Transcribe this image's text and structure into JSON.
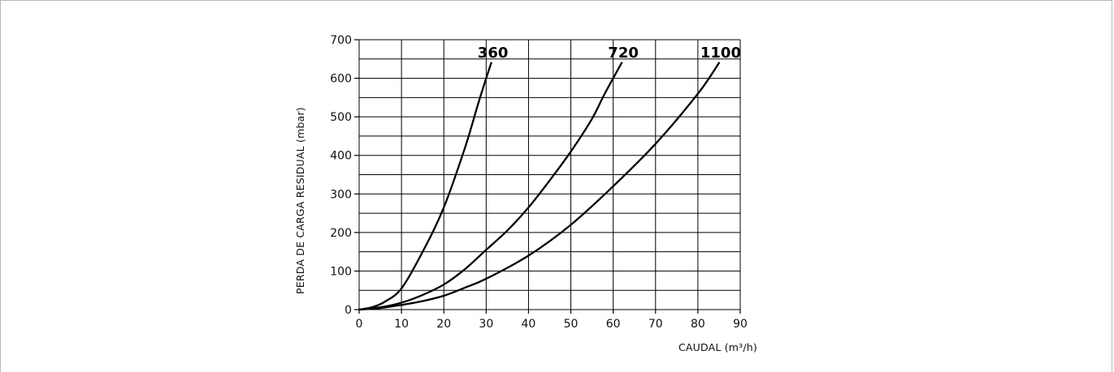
{
  "chart_data": {
    "type": "line",
    "title": "",
    "xlabel": "CAUDAL (m³/h)",
    "ylabel": "PERDA DE CARGA RESIDUAL (mbar)",
    "xlim": [
      0,
      90
    ],
    "ylim": [
      0,
      700
    ],
    "x_ticks": [
      0,
      10,
      20,
      30,
      40,
      50,
      60,
      70,
      80,
      90
    ],
    "y_ticks": [
      0,
      100,
      200,
      300,
      400,
      500,
      600,
      700
    ],
    "grid": true,
    "legend": "none",
    "series": [
      {
        "name": "360",
        "x": [
          0,
          3,
          6,
          10,
          15,
          20,
          25,
          28,
          30,
          31.2
        ],
        "y": [
          0,
          6,
          20,
          55,
          150,
          265,
          420,
          530,
          600,
          640
        ]
      },
      {
        "name": "720",
        "x": [
          0,
          5,
          10,
          15,
          20,
          25,
          30,
          35,
          40,
          45,
          50,
          55,
          58,
          62
        ],
        "y": [
          0,
          6,
          18,
          38,
          65,
          105,
          155,
          205,
          265,
          335,
          410,
          495,
          560,
          640
        ]
      },
      {
        "name": "1100",
        "x": [
          0,
          5,
          10,
          15,
          20,
          25,
          30,
          40,
          50,
          60,
          70,
          80,
          85
        ],
        "y": [
          0,
          4,
          12,
          22,
          36,
          57,
          80,
          140,
          220,
          320,
          430,
          560,
          640
        ]
      }
    ]
  }
}
